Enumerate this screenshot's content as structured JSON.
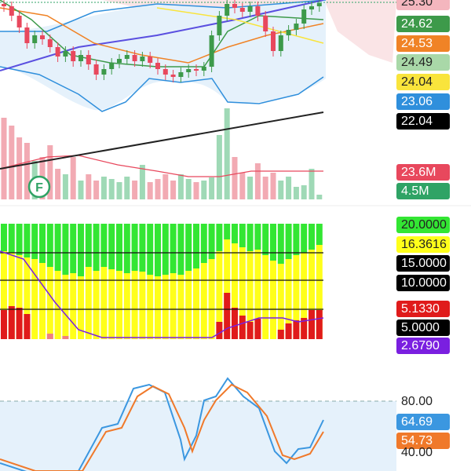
{
  "price_panel": {
    "labels": [
      "25.30",
      "24.62",
      "24.53",
      "24.49",
      "24.04",
      "23.06",
      "22.04"
    ]
  },
  "volume_panel": {
    "marker": "F",
    "labels": [
      "23.6M",
      "4.5M"
    ]
  },
  "indicator_panel": {
    "labels": [
      "20.0000",
      "16.3616",
      "15.0000",
      "10.0000",
      "5.1330",
      "5.0000",
      "2.6790"
    ]
  },
  "oscillator_panel": {
    "labels": [
      "80.00",
      "64.69",
      "54.73",
      "40.00"
    ]
  }
}
